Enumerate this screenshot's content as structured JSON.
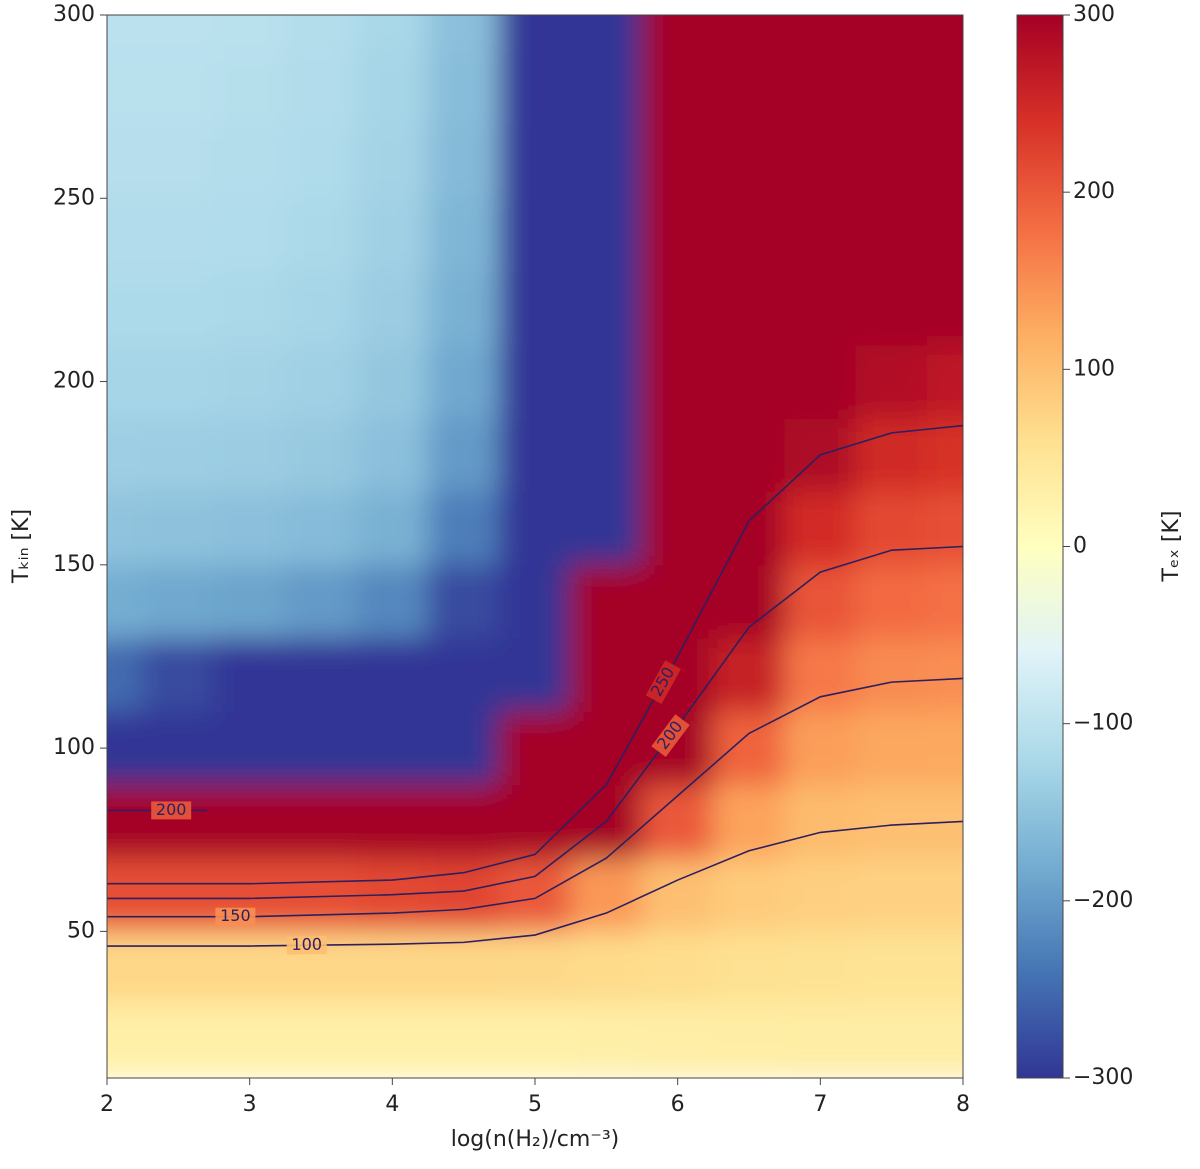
{
  "chart_data": {
    "type": "heatmap",
    "xlabel": "log(n(H₂)/cm⁻³)",
    "ylabel": "Tₖᵢₙ [K]",
    "colorbar_label": "Tₑₓ [K]",
    "x": [
      2,
      2.5,
      3,
      3.5,
      4,
      4.5,
      5,
      5.5,
      6,
      6.5,
      7,
      7.5,
      8
    ],
    "y": [
      20,
      40,
      60,
      80,
      100,
      120,
      140,
      160,
      180,
      200,
      220,
      240,
      260,
      280,
      300
    ],
    "z": [
      [
        30,
        30,
        30,
        30,
        30,
        30,
        30,
        31,
        32,
        33,
        34,
        35,
        35
      ],
      [
        70,
        70,
        70,
        70,
        70,
        70,
        69,
        66,
        62,
        58,
        56,
        55,
        55
      ],
      [
        210,
        210,
        210,
        210,
        215,
        220,
        200,
        140,
        100,
        85,
        80,
        78,
        78
      ],
      [
        500,
        500,
        500,
        500,
        500,
        550,
        600,
        400,
        200,
        130,
        105,
        100,
        100
      ],
      [
        -600,
        -600,
        -600,
        -600,
        -600,
        -600,
        700,
        700,
        350,
        190,
        135,
        126,
        125
      ],
      [
        -250,
        -280,
        -320,
        -350,
        -400,
        -500,
        -600,
        600,
        600,
        260,
        170,
        152,
        150
      ],
      [
        -180,
        -185,
        -190,
        -200,
        -220,
        -280,
        -500,
        550,
        650,
        350,
        205,
        182,
        178
      ],
      [
        -150,
        -152,
        -155,
        -160,
        -175,
        -230,
        -450,
        -600,
        700,
        450,
        245,
        215,
        210
      ],
      [
        -135,
        -136,
        -138,
        -142,
        -155,
        -200,
        -420,
        -600,
        700,
        550,
        290,
        248,
        240
      ],
      [
        -125,
        -126,
        -128,
        -132,
        -145,
        -185,
        -400,
        -600,
        700,
        650,
        340,
        285,
        270
      ],
      [
        -118,
        -118,
        -120,
        -125,
        -138,
        -175,
        -380,
        -600,
        700,
        700,
        400,
        320,
        300
      ],
      [
        -112,
        -112,
        -114,
        -119,
        -132,
        -168,
        -370,
        -600,
        700,
        700,
        450,
        360,
        350
      ],
      [
        -108,
        -108,
        -110,
        -115,
        -128,
        -162,
        -360,
        -600,
        700,
        700,
        500,
        420,
        400
      ],
      [
        -105,
        -105,
        -107,
        -112,
        -125,
        -158,
        -350,
        -600,
        700,
        700,
        550,
        480,
        450
      ],
      [
        -102,
        -102,
        -104,
        -110,
        -122,
        -155,
        -340,
        -600,
        700,
        700,
        600,
        520,
        500
      ]
    ],
    "colors": [
      "#313695",
      "#4575b4",
      "#74add1",
      "#abd9e9",
      "#e0f3f8",
      "#ffffbf",
      "#fee090",
      "#fdae61",
      "#f46d43",
      "#d73027",
      "#a50026"
    ],
    "zlim": [
      -300,
      300
    ],
    "zticks": [
      {
        "value": -300,
        "label": "−300"
      },
      {
        "value": -200,
        "label": "−200"
      },
      {
        "value": -100,
        "label": "−100"
      },
      0,
      100,
      200,
      300
    ],
    "xlim": [
      2,
      8
    ],
    "xticks": [
      2,
      3,
      4,
      5,
      6,
      7,
      8
    ],
    "ylim": [
      10,
      300
    ],
    "yticks": [
      50,
      100,
      150,
      200,
      250,
      300
    ],
    "contour_color": "#2e1f5f",
    "contours": [
      {
        "level": 100,
        "x": [
          2,
          3,
          4,
          4.5,
          5,
          5.5,
          6,
          6.5,
          7,
          7.5,
          8
        ],
        "y": [
          46,
          46,
          46.5,
          47,
          49,
          55,
          64,
          72,
          77,
          79,
          80
        ]
      },
      {
        "level": 150,
        "x": [
          2,
          3,
          4,
          4.5,
          5,
          5.5,
          6,
          6.5,
          7,
          7.5,
          8
        ],
        "y": [
          54,
          54,
          55,
          56,
          59,
          70,
          87,
          104,
          114,
          118,
          119
        ]
      },
      {
        "level": 200,
        "x": [
          2,
          3,
          4,
          4.5,
          5,
          5.5,
          6,
          6.5,
          7,
          7.5,
          8
        ],
        "y": [
          59,
          59,
          60,
          61,
          65,
          80,
          106,
          133,
          148,
          154,
          155
        ]
      },
      {
        "level": 250,
        "x": [
          2,
          3,
          4,
          4.5,
          5,
          5.5,
          6,
          6.5,
          7,
          7.5,
          8
        ],
        "y": [
          63,
          63,
          64,
          66,
          71,
          90,
          125,
          162,
          180,
          186,
          188
        ]
      },
      {
        "level": 200,
        "x": [
          2,
          2.7
        ],
        "y": [
          83,
          83
        ]
      }
    ]
  }
}
